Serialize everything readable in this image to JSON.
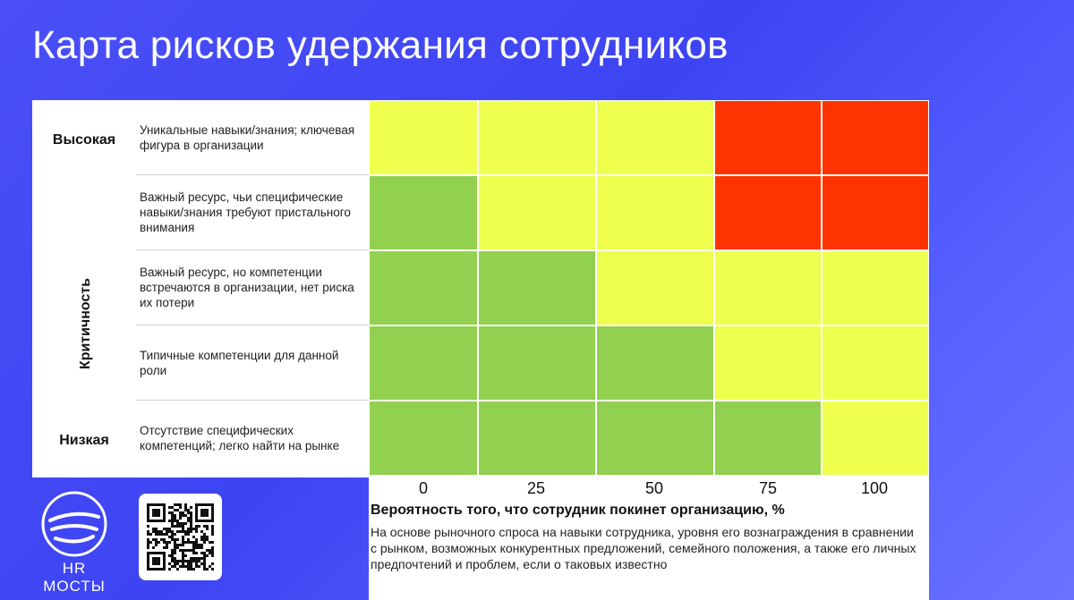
{
  "slide": {
    "title": "Карта рисков удержания сотрудников"
  },
  "logo": {
    "text": "HR МОСТЫ",
    "icon": "bridge-logo-icon"
  },
  "qr": {
    "icon": "qr-code-icon"
  },
  "chart_data": {
    "type": "heatmap",
    "title": "Карта рисков удержания сотрудников",
    "ylabel": "Критичность",
    "y_high_label": "Высокая",
    "y_low_label": "Низкая",
    "xlabel": "Вероятность того, что сотрудник покинет организацию, %",
    "x_note": "На основе рыночного спроса на навыки сотрудника, уровня его вознаграждения в сравнении с рынком, возможных конкурентных предложений, семейного положения, а также  его личных предпочтений и проблем, если о таковых известно",
    "x_ticks": [
      "0",
      "25",
      "50",
      "75",
      "100"
    ],
    "rows": [
      "Уникальные навыки/знания; ключевая фигура в организации",
      "Важный ресурс, чьи специфические навыки/знания требуют пристального внимания",
      "Важный ресурс, но компетенции встречаются в организации, нет риска их потери",
      "Типичные компетенции для данной роли",
      "Отсутствие специфических компетенций; легко найти на рынке"
    ],
    "levels": {
      "low": "#92d050",
      "medium": "#eeff4d",
      "high": "#ff3300"
    },
    "cells": [
      [
        "medium",
        "medium",
        "medium",
        "high",
        "high"
      ],
      [
        "low",
        "medium",
        "medium",
        "high",
        "high"
      ],
      [
        "low",
        "low",
        "medium",
        "medium",
        "medium"
      ],
      [
        "low",
        "low",
        "low",
        "medium",
        "medium"
      ],
      [
        "low",
        "low",
        "low",
        "low",
        "medium"
      ]
    ]
  }
}
